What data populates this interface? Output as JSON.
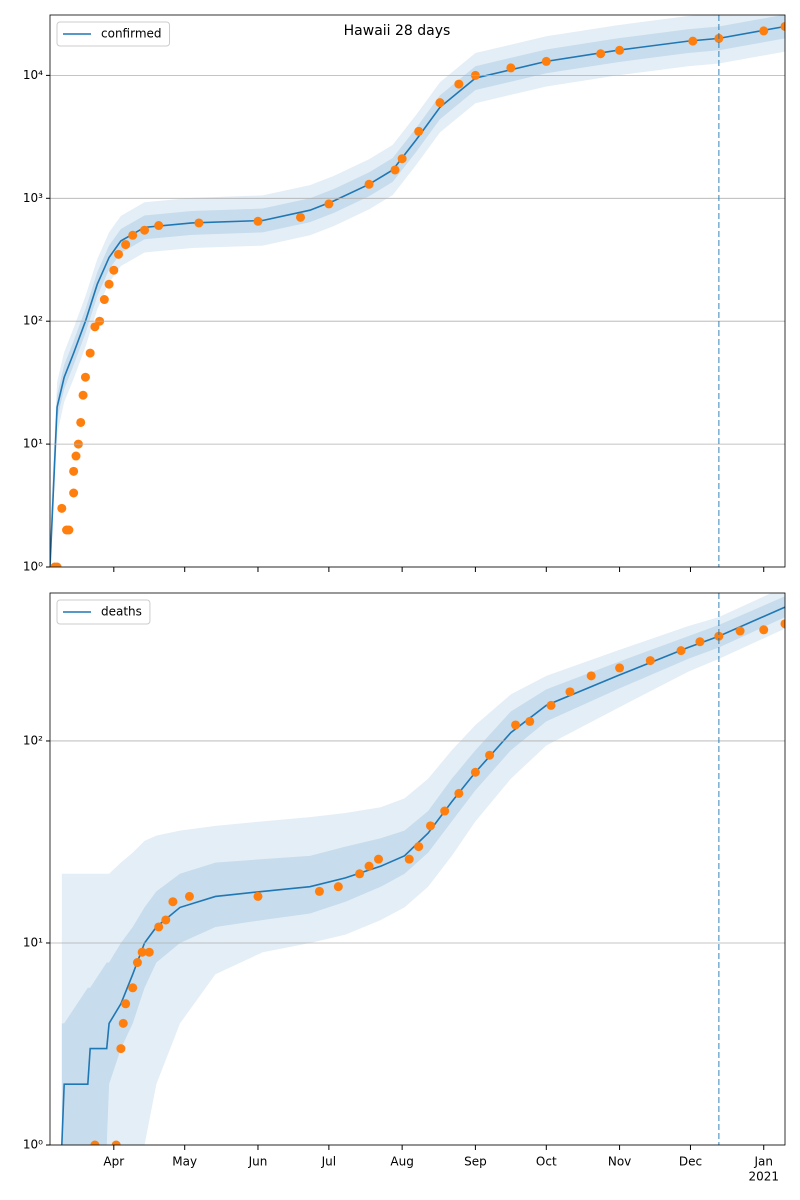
{
  "chart_data": [
    {
      "type": "line",
      "title": "Hawaii 28 days",
      "ylog": true,
      "ylim": [
        1,
        31000
      ],
      "yticks": [
        {
          "value": 1,
          "label": "10⁰"
        },
        {
          "value": 10,
          "label": "10¹"
        },
        {
          "value": 100,
          "label": "10²"
        },
        {
          "value": 1000,
          "label": "10³"
        },
        {
          "value": 10000,
          "label": "10⁴"
        }
      ],
      "xlim": [
        0,
        311
      ],
      "grid": "y",
      "legend": "upper left",
      "vline": 283,
      "vline_color": "#1f77b4",
      "series": [
        {
          "name": "confirmed",
          "color": "#1f77b4",
          "x": [
            0,
            3,
            6,
            10,
            15,
            20,
            25,
            30,
            40,
            60,
            90,
            110,
            120,
            135,
            145,
            155,
            165,
            180,
            210,
            240,
            270,
            283,
            311
          ],
          "values": [
            1,
            20,
            35,
            55,
            100,
            200,
            330,
            450,
            580,
            630,
            660,
            800,
            950,
            1300,
            1700,
            3000,
            5500,
            9500,
            13000,
            16000,
            19000,
            20000,
            25000
          ],
          "bands": [
            {
              "lower": [
                1,
                12,
                22,
                34,
                62,
                125,
                206,
                281,
                362,
                394,
                412,
                500,
                594,
                812,
                1062,
                1875,
                3438,
                5938,
                8125,
                10000,
                11875,
                12500,
                15625
              ],
              "upper": [
                2,
                32,
                56,
                88,
                160,
                320,
                528,
                720,
                928,
                1008,
                1056,
                1280,
                1520,
                2080,
                2720,
                4800,
                8800,
                15200,
                20800,
                25600,
                30400,
                32000,
                40000
              ]
            },
            {
              "lower": [
                1,
                16,
                28,
                44,
                80,
                160,
                264,
                360,
                464,
                504,
                528,
                640,
                760,
                1040,
                1360,
                2400,
                4400,
                7600,
                10400,
                12800,
                15200,
                16000,
                20000
              ],
              "upper": [
                1.5,
                25,
                44,
                69,
                125,
                250,
                413,
                563,
                725,
                788,
                825,
                1000,
                1188,
                1625,
                2125,
                3750,
                6875,
                11875,
                16250,
                20000,
                23750,
                25000,
                31250
              ]
            }
          ]
        }
      ],
      "observed": {
        "color": "#ff7f0e",
        "x": [
          2,
          3,
          5,
          7,
          8,
          10,
          10,
          11,
          12,
          13,
          14,
          15,
          17,
          19,
          21,
          23,
          25,
          27,
          29,
          32,
          35,
          40,
          46,
          63,
          88,
          106,
          118,
          135,
          146,
          149,
          156,
          165,
          173,
          180,
          195,
          210,
          233,
          241,
          272,
          283,
          302,
          311
        ],
        "values": [
          1,
          1,
          3,
          2,
          2,
          4,
          6,
          8,
          10,
          15,
          25,
          35,
          55,
          90,
          100,
          150,
          200,
          260,
          350,
          420,
          500,
          550,
          600,
          630,
          650,
          700,
          900,
          1300,
          1700,
          2100,
          3500,
          6000,
          8500,
          10000,
          11500,
          13000,
          15000,
          16000,
          19000,
          20000,
          23000,
          25000
        ]
      }
    },
    {
      "type": "line",
      "ylog": true,
      "ylim": [
        1,
        540
      ],
      "yticks": [
        {
          "value": 1,
          "label": "10⁰"
        },
        {
          "value": 10,
          "label": "10¹"
        },
        {
          "value": 100,
          "label": "10²"
        }
      ],
      "xlim": [
        0,
        311
      ],
      "grid": "y",
      "legend": "upper left",
      "vline": 283,
      "vline_color": "#1f77b4",
      "xticks": [
        {
          "value": 27,
          "label": "Apr"
        },
        {
          "value": 57,
          "label": "May"
        },
        {
          "value": 88,
          "label": "Jun"
        },
        {
          "value": 118,
          "label": "Jul"
        },
        {
          "value": 149,
          "label": "Aug"
        },
        {
          "value": 180,
          "label": "Sep"
        },
        {
          "value": 210,
          "label": "Oct"
        },
        {
          "value": 241,
          "label": "Nov"
        },
        {
          "value": 271,
          "label": "Dec"
        },
        {
          "value": 302,
          "label": "Jan"
        }
      ],
      "xtick_year": "2021",
      "series": [
        {
          "name": "deaths",
          "color": "#1f77b4",
          "x": [
            5,
            6,
            16,
            17,
            24,
            25,
            30,
            35,
            40,
            45,
            55,
            70,
            90,
            110,
            125,
            140,
            150,
            160,
            170,
            180,
            195,
            210,
            240,
            270,
            283,
            311
          ],
          "values": [
            1,
            2,
            2,
            3,
            3,
            4,
            5,
            7,
            10,
            12,
            15,
            17,
            18,
            19,
            21,
            24,
            27,
            35,
            50,
            70,
            110,
            150,
            210,
            290,
            330,
            460
          ],
          "bands": [
            {
              "lower": [
                1,
                1,
                1,
                1,
                1,
                1,
                1,
                1,
                1,
                2,
                4,
                7,
                9,
                10,
                11,
                13,
                15,
                19,
                27,
                40,
                65,
                95,
                145,
                220,
                255,
                360
              ],
              "upper": [
                22,
                22,
                22,
                22,
                22,
                22,
                25,
                28,
                32,
                34,
                36,
                38,
                40,
                42,
                44,
                47,
                52,
                65,
                90,
                120,
                170,
                210,
                280,
                370,
                410,
                580
              ]
            },
            {
              "lower": [
                1,
                1,
                1,
                1,
                1,
                2,
                3,
                4,
                6,
                8,
                10,
                12,
                13,
                14,
                16,
                19,
                22,
                28,
                40,
                57,
                90,
                125,
                180,
                255,
                290,
                410
              ],
              "upper": [
                4,
                4,
                6,
                6,
                8,
                8,
                10,
                12,
                15,
                18,
                22,
                25,
                26,
                27,
                30,
                33,
                36,
                45,
                65,
                90,
                140,
                180,
                245,
                330,
                375,
                520
              ]
            }
          ]
        }
      ],
      "observed": {
        "color": "#ff7f0e",
        "x": [
          19,
          28,
          30,
          31,
          32,
          35,
          37,
          39,
          42,
          46,
          49,
          52,
          59,
          88,
          114,
          122,
          131,
          135,
          139,
          152,
          156,
          161,
          167,
          173,
          180,
          186,
          197,
          203,
          212,
          220,
          229,
          241,
          254,
          267,
          275,
          283,
          292,
          302,
          311
        ],
        "values": [
          1,
          1,
          3,
          4,
          5,
          6,
          8,
          9,
          9,
          12,
          13,
          16,
          17,
          17,
          18,
          19,
          22,
          24,
          26,
          26,
          30,
          38,
          45,
          55,
          70,
          85,
          120,
          125,
          150,
          175,
          210,
          230,
          250,
          280,
          310,
          330,
          350,
          355,
          380
        ]
      }
    }
  ]
}
